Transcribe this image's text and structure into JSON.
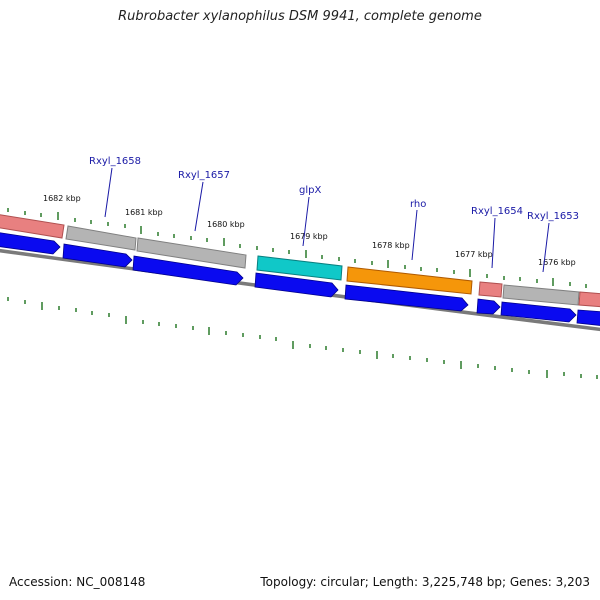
{
  "title": "Rubrobacter xylanophilus DSM 9941, complete genome",
  "footer": {
    "accession": "Accession: NC_008148",
    "summary": "Topology: circular; Length: 3,225,748 bp; Genes: 3,203"
  },
  "kbp_labels": [
    "1682 kbp",
    "1681 kbp",
    "1680 kbp",
    "1679 kbp",
    "1678 kbp",
    "1677 kbp",
    "1676 kbp"
  ],
  "gene_labels": [
    "Rxyl_1658",
    "Rxyl_1657",
    "glpX",
    "rho",
    "Rxyl_1654",
    "Rxyl_1653"
  ],
  "colors": {
    "cds": "#0a0af0",
    "gene_salmon": "#e88080",
    "gene_gray": "#b4b4b4",
    "gene_cyan": "#10c8c8",
    "gene_orange": "#f5960a",
    "tick": "#2a7a2a",
    "backbone": "#808080",
    "label": "#1a1aa6"
  }
}
